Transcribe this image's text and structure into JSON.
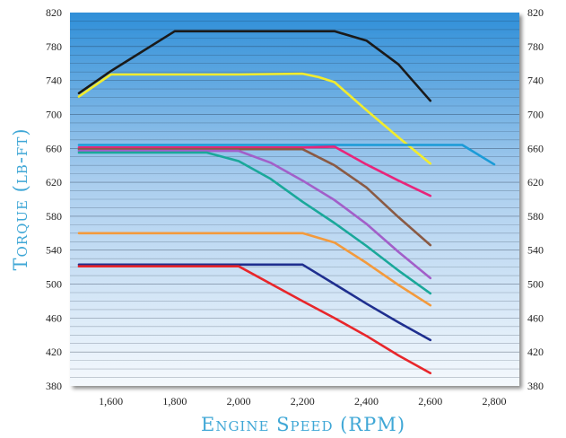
{
  "chart_data": {
    "type": "line",
    "title": "",
    "xlabel": "Engine Speed (RPM)",
    "ylabel": "Torque (lb-ft)",
    "xlim": [
      1500,
      2800
    ],
    "ylim": [
      380,
      820
    ],
    "x_ticks": [
      "1,600",
      "1,800",
      "2,000",
      "2,200",
      "2,400",
      "2,600",
      "2,800"
    ],
    "x_tick_values": [
      1600,
      1800,
      2000,
      2200,
      2400,
      2600,
      2800
    ],
    "y_ticks": [
      "380",
      "420",
      "460",
      "500",
      "540",
      "580",
      "620",
      "660",
      "700",
      "740",
      "780",
      "820"
    ],
    "y_tick_values": [
      380,
      420,
      460,
      500,
      540,
      580,
      620,
      660,
      700,
      740,
      780,
      820
    ],
    "grid": true,
    "dual_y_axis": true,
    "plot_background": "blue gradient",
    "series": [
      {
        "color": "#1a1a1a",
        "x": [
          1500,
          1600,
          1800,
          2000,
          2200,
          2300,
          2400,
          2500,
          2600
        ],
        "y": [
          725,
          751,
          798,
          798,
          798,
          798,
          787,
          759,
          716
        ]
      },
      {
        "color": "#f2ec2c",
        "x": [
          1500,
          1600,
          1800,
          2000,
          2200,
          2250,
          2300,
          2400,
          2500,
          2600
        ],
        "y": [
          721,
          747,
          747,
          747,
          748,
          744,
          738,
          705,
          673,
          642
        ]
      },
      {
        "color": "#1a9bd7",
        "x": [
          1500,
          1600,
          1800,
          2000,
          2200,
          2400,
          2600,
          2700,
          2800
        ],
        "y": [
          664,
          664,
          664,
          664,
          664,
          664,
          664,
          664,
          641
        ]
      },
      {
        "color": "#e8257a",
        "x": [
          1500,
          1800,
          2000,
          2200,
          2300,
          2400,
          2500,
          2600
        ],
        "y": [
          661,
          661,
          661,
          661,
          662,
          641,
          622,
          604
        ]
      },
      {
        "color": "#8a5a44",
        "x": [
          1500,
          1800,
          2000,
          2200,
          2300,
          2400,
          2500,
          2600
        ],
        "y": [
          659,
          659,
          659,
          659,
          640,
          614,
          579,
          546
        ]
      },
      {
        "color": "#a25fc9",
        "x": [
          1500,
          1800,
          2000,
          2100,
          2200,
          2300,
          2400,
          2500,
          2600
        ],
        "y": [
          657,
          657,
          657,
          643,
          622,
          599,
          571,
          538,
          507
        ]
      },
      {
        "color": "#1aa89a",
        "x": [
          1500,
          1700,
          1900,
          2000,
          2100,
          2200,
          2300,
          2400,
          2500,
          2600
        ],
        "y": [
          655,
          655,
          655,
          645,
          624,
          597,
          572,
          545,
          516,
          489
        ]
      },
      {
        "color": "#f39a3c",
        "x": [
          1500,
          1800,
          2000,
          2200,
          2300,
          2400,
          2500,
          2600
        ],
        "y": [
          560,
          560,
          560,
          560,
          549,
          525,
          499,
          475
        ]
      },
      {
        "color": "#1f2f8f",
        "x": [
          1500,
          1800,
          2000,
          2200,
          2300,
          2400,
          2500,
          2600
        ],
        "y": [
          523,
          523,
          523,
          523,
          500,
          477,
          455,
          434
        ]
      },
      {
        "color": "#e8262b",
        "x": [
          1500,
          1800,
          2000,
          2200,
          2300,
          2400,
          2500,
          2600
        ],
        "y": [
          521,
          521,
          521,
          480,
          460,
          439,
          416,
          395
        ]
      }
    ]
  }
}
